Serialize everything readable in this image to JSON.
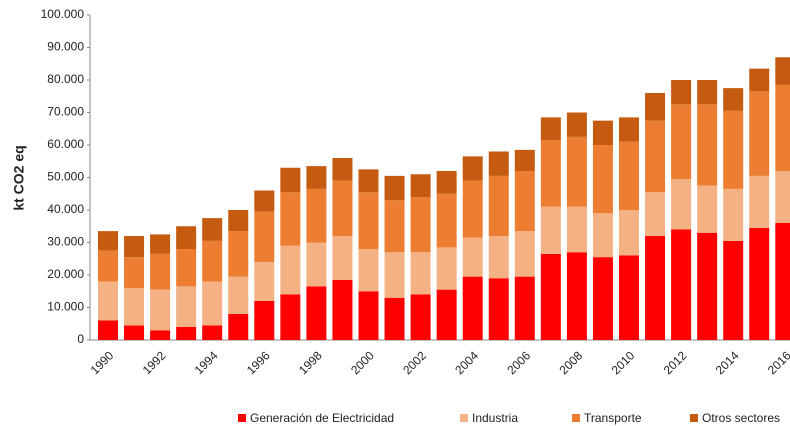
{
  "chart_data": {
    "type": "stacked_bar",
    "y_label": "kt CO2 eq",
    "categories": [
      "1990",
      null,
      "1992",
      null,
      "1994",
      null,
      "1996",
      null,
      "1998",
      null,
      "2000",
      null,
      "2002",
      null,
      "2004",
      null,
      "2006",
      null,
      "2008",
      null,
      "2010",
      null,
      "2012",
      null,
      "2014",
      null,
      "2016"
    ],
    "series": [
      {
        "name": "Generación de Electricidad",
        "color": "#ff0000",
        "values": [
          6000,
          4500,
          3000,
          4000,
          4500,
          8000,
          12000,
          14000,
          16500,
          18500,
          15000,
          13000,
          14000,
          15500,
          19500,
          19000,
          19500,
          26500,
          27000,
          25500,
          26000,
          32000,
          34000,
          33000,
          30500,
          34500,
          36000
        ]
      },
      {
        "name": "Industria",
        "color": "#f4b183",
        "values": [
          12000,
          11500,
          12500,
          12500,
          13500,
          11500,
          12000,
          15000,
          13500,
          13500,
          13000,
          14000,
          13000,
          13000,
          12000,
          13000,
          14000,
          14500,
          14000,
          13500,
          14000,
          13500,
          15500,
          14500,
          16000,
          16000,
          16000
        ]
      },
      {
        "name": "Transporte",
        "color": "#ed7d31",
        "values": [
          9500,
          9500,
          11000,
          11500,
          12500,
          14000,
          15500,
          16500,
          16500,
          17000,
          17500,
          16000,
          17000,
          16500,
          17500,
          18500,
          18500,
          20500,
          21500,
          21000,
          21000,
          22000,
          23000,
          25000,
          24000,
          26000,
          26500
        ]
      },
      {
        "name": "Otros sectores",
        "color": "#c55a11",
        "values": [
          6000,
          6500,
          6000,
          7000,
          7000,
          6500,
          6500,
          7500,
          7000,
          7000,
          7000,
          7500,
          7000,
          7000,
          7500,
          7500,
          6500,
          7000,
          7500,
          7500,
          7500,
          8500,
          7500,
          7500,
          7000,
          7000,
          8500
        ]
      }
    ],
    "ylim": [
      0,
      100000
    ],
    "yticks": [
      0,
      {
        "value": 10000,
        "label": "10.000"
      },
      {
        "value": 20000,
        "label": "20.000"
      },
      {
        "value": 30000,
        "label": "30.000"
      },
      {
        "value": 40000,
        "label": "40.000"
      },
      {
        "value": 50000,
        "label": "50.000"
      },
      {
        "value": 60000,
        "label": "60.000"
      },
      {
        "value": 70000,
        "label": "70.000"
      },
      {
        "value": 80000,
        "label": "80.000"
      },
      {
        "value": 90000,
        "label": "90.000"
      },
      {
        "value": 100000,
        "label": "100.000"
      }
    ],
    "legend": "bottom"
  }
}
